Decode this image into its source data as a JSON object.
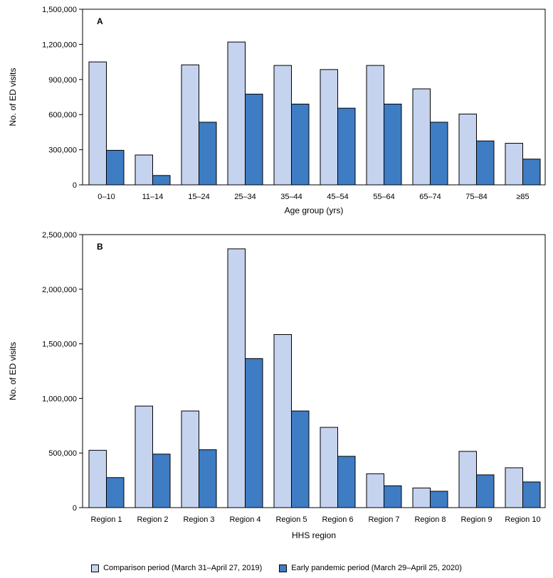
{
  "colors": {
    "comparison": "#c5d3ef",
    "pandemic": "#3e7cc4",
    "stroke": "#000000"
  },
  "legend": {
    "comparison_label": "Comparison period (March 31–April 27, 2019)",
    "pandemic_label": "Early pandemic period (March 29–April 25, 2020)"
  },
  "chart_data": [
    {
      "type": "bar",
      "panel_label": "A",
      "xlabel": "Age group (yrs)",
      "ylabel": "No. of ED visits",
      "ylim": [
        0,
        1500000
      ],
      "yticks": [
        0,
        300000,
        600000,
        900000,
        1200000,
        1500000
      ],
      "ytick_labels": [
        "0",
        "300,000",
        "600,000",
        "900,000",
        "1,200,000",
        "1,500,000"
      ],
      "categories": [
        "0–10",
        "11–14",
        "15–24",
        "25–34",
        "35–44",
        "45–54",
        "55–64",
        "65–74",
        "75–84",
        "≥85"
      ],
      "series": [
        {
          "name": "Comparison period (March 31–April 27, 2019)",
          "key": "comparison",
          "values": [
            1050000,
            255000,
            1025000,
            1220000,
            1020000,
            985000,
            1020000,
            820000,
            605000,
            355000
          ]
        },
        {
          "name": "Early pandemic period (March 29–April 25, 2020)",
          "key": "pandemic",
          "values": [
            295000,
            80000,
            535000,
            775000,
            690000,
            655000,
            690000,
            535000,
            375000,
            220000
          ]
        }
      ]
    },
    {
      "type": "bar",
      "panel_label": "B",
      "xlabel": "HHS region",
      "ylabel": "No. of ED visits",
      "ylim": [
        0,
        2500000
      ],
      "yticks": [
        0,
        500000,
        1000000,
        1500000,
        2000000,
        2500000
      ],
      "ytick_labels": [
        "0",
        "500,000",
        "1,000,000",
        "1,500,000",
        "2,000,000",
        "2,500,000"
      ],
      "categories": [
        "Region 1",
        "Region 2",
        "Region 3",
        "Region 4",
        "Region 5",
        "Region 6",
        "Region 7",
        "Region 8",
        "Region 9",
        "Region 10"
      ],
      "series": [
        {
          "name": "Comparison period (March 31–April 27, 2019)",
          "key": "comparison",
          "values": [
            525000,
            930000,
            885000,
            2370000,
            1585000,
            735000,
            310000,
            180000,
            515000,
            365000
          ]
        },
        {
          "name": "Early pandemic period (March 29–April 25, 2020)",
          "key": "pandemic",
          "values": [
            275000,
            490000,
            530000,
            1365000,
            885000,
            470000,
            200000,
            150000,
            300000,
            235000
          ]
        }
      ]
    }
  ]
}
